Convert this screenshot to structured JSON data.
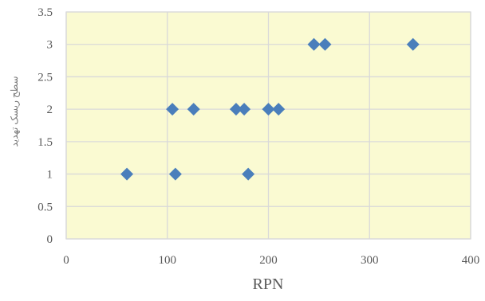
{
  "chart_data": {
    "type": "scatter",
    "title": "",
    "xlabel": "RPN",
    "ylabel": "سطح ریسک تهدید",
    "xlim": [
      0,
      400
    ],
    "ylim": [
      0,
      3.5
    ],
    "x_ticks": [
      "0",
      "100",
      "200",
      "300",
      "400"
    ],
    "y_ticks": [
      "0",
      "0.5",
      "1",
      "1.5",
      "2",
      "2.5",
      "3",
      "3.5"
    ],
    "grid": true,
    "legend": "none",
    "plot_background": "#fafad2",
    "grid_color": "#d9d9d9",
    "marker": "diamond",
    "series": [
      {
        "color": "#4a7ebb",
        "points": [
          {
            "x": 60,
            "y": 1
          },
          {
            "x": 108,
            "y": 1
          },
          {
            "x": 180,
            "y": 1
          },
          {
            "x": 105,
            "y": 2
          },
          {
            "x": 126,
            "y": 2
          },
          {
            "x": 168,
            "y": 2
          },
          {
            "x": 176,
            "y": 2
          },
          {
            "x": 200,
            "y": 2
          },
          {
            "x": 210,
            "y": 2
          },
          {
            "x": 245,
            "y": 3
          },
          {
            "x": 256,
            "y": 3
          },
          {
            "x": 343,
            "y": 3
          }
        ]
      }
    ]
  }
}
